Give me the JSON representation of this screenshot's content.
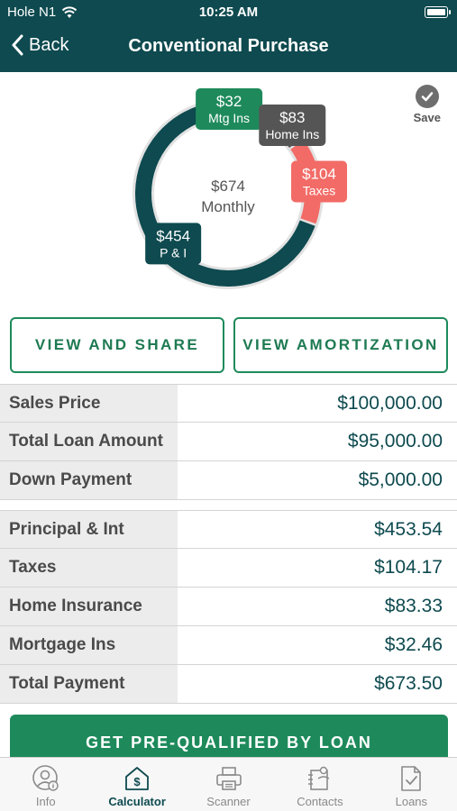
{
  "status_bar": {
    "carrier": "Hole N1",
    "time": "10:25 AM",
    "icons": [
      "wifi-icon",
      "battery-icon"
    ]
  },
  "nav": {
    "back_label": "Back",
    "title": "Conventional Purchase"
  },
  "save_label": "Save",
  "chart_data": {
    "type": "donut",
    "center_value": "$674",
    "center_label": "Monthly",
    "total": 673.5,
    "segments": [
      {
        "name": "Mtg Ins",
        "display": "$32",
        "value": 32.46,
        "color": "#1e8a5b"
      },
      {
        "name": "Home Ins",
        "display": "$83",
        "value": 83.33,
        "color": "#555555"
      },
      {
        "name": "Taxes",
        "display": "$104",
        "value": 104.17,
        "color": "#f26b66"
      },
      {
        "name": "P & I",
        "display": "$454",
        "value": 453.54,
        "color": "#0e4a4f"
      }
    ]
  },
  "buttons": {
    "view_share": "VIEW AND SHARE",
    "view_amortization": "VIEW AMORTIZATION",
    "pre_qualify": "GET PRE-QUALIFIED BY LOAN"
  },
  "loan_rows": [
    {
      "label": "Sales Price",
      "value": "$100,000.00"
    },
    {
      "label": "Total Loan Amount",
      "value": "$95,000.00"
    },
    {
      "label": "Down Payment",
      "value": "$5,000.00"
    }
  ],
  "payment_rows": [
    {
      "label": "Principal & Int",
      "value": "$453.54"
    },
    {
      "label": "Taxes",
      "value": "$104.17"
    },
    {
      "label": "Home Insurance",
      "value": "$83.33"
    },
    {
      "label": "Mortgage Ins",
      "value": "$32.46"
    },
    {
      "label": "Total Payment",
      "value": "$673.50"
    }
  ],
  "tabs": [
    {
      "label": "Info",
      "icon": "user-info-icon",
      "active": false
    },
    {
      "label": "Calculator",
      "icon": "calculator-icon",
      "active": true
    },
    {
      "label": "Scanner",
      "icon": "printer-icon",
      "active": false
    },
    {
      "label": "Contacts",
      "icon": "contacts-icon",
      "active": false
    },
    {
      "label": "Loans",
      "icon": "document-check-icon",
      "active": false
    }
  ],
  "colors": {
    "header": "#0e4a4f",
    "accent": "#1e8a5b"
  }
}
